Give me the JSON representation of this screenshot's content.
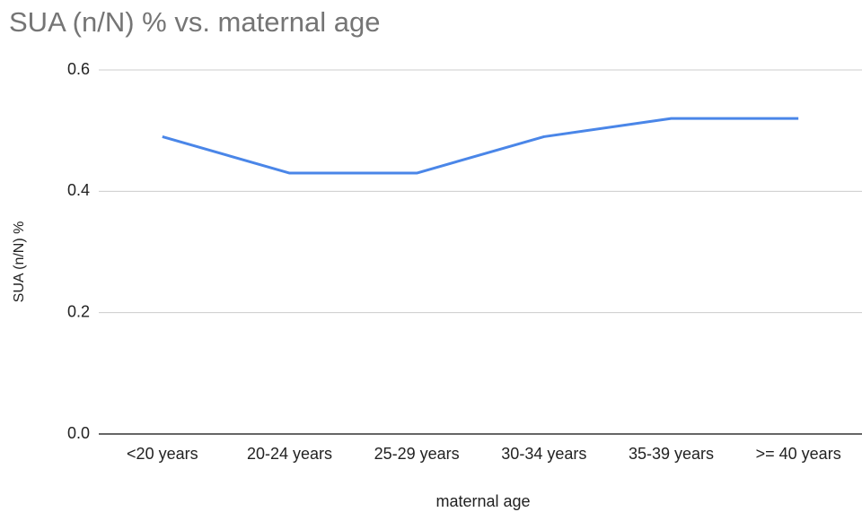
{
  "chart_data": {
    "type": "line",
    "title": "SUA (n/N) % vs. maternal age",
    "x_label": "maternal age",
    "y_label": "SUA (n/N) %",
    "categories": [
      "<20 years",
      "20-24 years",
      "25-29 years",
      "30-34 years",
      "35-39 years",
      ">= 40 years"
    ],
    "series": [
      {
        "name": "SUA (n/N) %",
        "color": "#4a86e8",
        "values": [
          0.49,
          0.43,
          0.43,
          0.49,
          0.52,
          0.52
        ]
      }
    ],
    "ylim": [
      0,
      0.6
    ],
    "yticks": [
      {
        "value": 0,
        "label": "0.0"
      },
      0.2,
      0.4,
      0.6
    ],
    "grid": true
  }
}
